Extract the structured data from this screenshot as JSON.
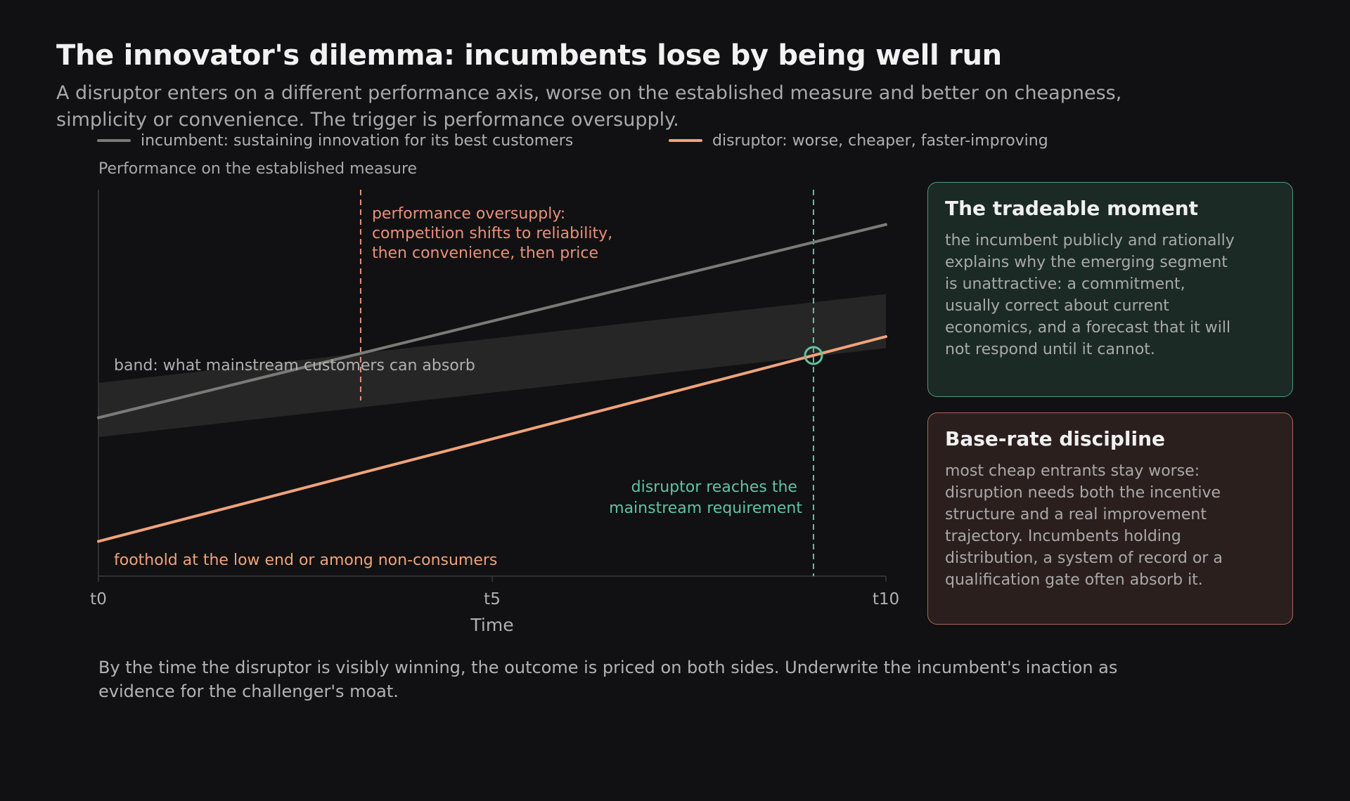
{
  "header": {
    "title": "The innovator's dilemma: incumbents lose by being well run",
    "subtitle": "A disruptor enters on a different performance axis, worse on the established measure and better on cheapness, simplicity or convenience. The trigger is performance oversupply."
  },
  "colors": {
    "background": "#111113",
    "incumbent": "#7a7a76",
    "disruptor": "#f0a37a",
    "band": "#2a2a2a",
    "oversupply": "#e8917a",
    "requirement": "#5ec4a0"
  },
  "chart_data": {
    "type": "line",
    "ylabel": "Performance on the established measure",
    "xlabel": "Time",
    "x_ticks": [
      "t0",
      "t5",
      "t10"
    ],
    "xlim": [
      0,
      10
    ],
    "ylim": [
      0,
      100
    ],
    "series": [
      {
        "name": "incumbent: sustaining innovation for its best customers",
        "x": [
          0,
          10
        ],
        "y": [
          41,
          91
        ]
      },
      {
        "name": "disruptor: worse, cheaper, faster-improving",
        "x": [
          0,
          10
        ],
        "y": [
          9,
          62
        ]
      }
    ],
    "band": {
      "label": "band: what mainstream customers can absorb",
      "x": [
        0,
        10
      ],
      "lower": [
        36,
        59
      ],
      "upper": [
        50,
        73
      ]
    },
    "markers": [
      {
        "x": 3.33,
        "label": "performance oversupply: competition shifts to reliability, then convenience, then price"
      },
      {
        "x": 9.08,
        "label": "disruptor reaches the mainstream requirement"
      }
    ],
    "intersection": {
      "x": 9.08,
      "y": 57.1
    },
    "annotations": [
      {
        "text": "foothold at the low end or among non-consumers"
      }
    ]
  },
  "chart_text": {
    "oversupply_lines": [
      "performance oversupply:",
      "competition shifts to reliability,",
      "then convenience, then price"
    ],
    "requirement_lines": [
      "disruptor reaches the",
      "mainstream requirement"
    ]
  },
  "cards": [
    {
      "title": "The tradeable moment",
      "body": "the incumbent publicly and rationally explains why the emerging segment is unattractive: a commitment, usually correct about current economics, and a forecast that it will not respond until it cannot."
    },
    {
      "title": "Base-rate discipline",
      "body": "most cheap entrants stay worse: disruption needs both the incentive structure and a real improvement trajectory. Incumbents holding distribution, a system of record or a qualification gate often absorb it."
    }
  ],
  "footer": {
    "text": "By the time the disruptor is visibly winning, the outcome is priced on both sides. Underwrite the incumbent's inaction as evidence for the challenger's moat."
  }
}
